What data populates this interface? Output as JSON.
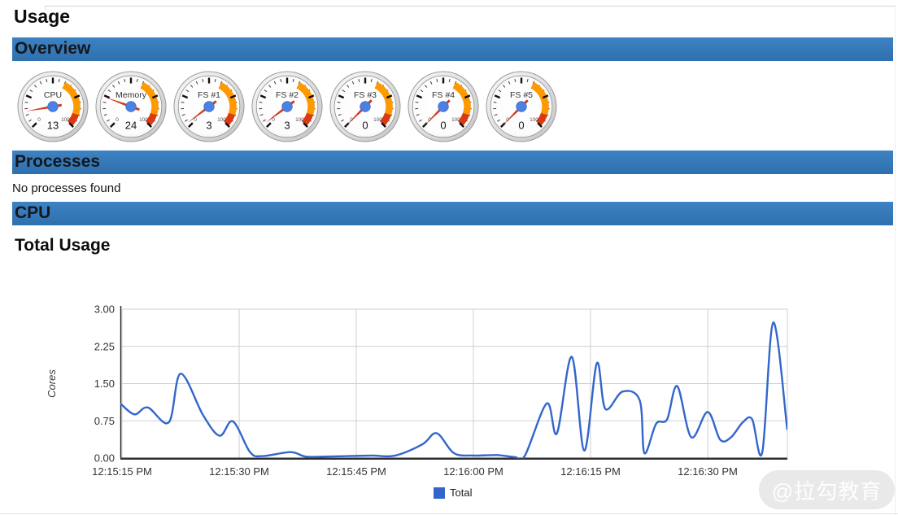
{
  "page": {
    "title": "Usage"
  },
  "sections": [
    {
      "id": "overview",
      "label": "Overview"
    },
    {
      "id": "processes",
      "label": "Processes"
    },
    {
      "id": "cpu",
      "label": "CPU"
    }
  ],
  "gauges": [
    {
      "label": "CPU",
      "value": 13,
      "min": 0,
      "max": 100
    },
    {
      "label": "Memory",
      "value": 24,
      "min": 0,
      "max": 100
    },
    {
      "label": "FS #1",
      "value": 3,
      "min": 0,
      "max": 100
    },
    {
      "label": "FS #2",
      "value": 3,
      "min": 0,
      "max": 100
    },
    {
      "label": "FS #3",
      "value": 0,
      "min": 0,
      "max": 100
    },
    {
      "label": "FS #4",
      "value": 0,
      "min": 0,
      "max": 100
    },
    {
      "label": "FS #5",
      "value": 0,
      "min": 0,
      "max": 100
    }
  ],
  "gauge_style": {
    "min_label": "0",
    "max_label": "100",
    "needle_color": "#d23b1e",
    "hub_color": "#4c80e1",
    "bands": [
      {
        "from": 60,
        "to": 90,
        "color": "#ff9900"
      },
      {
        "from": 90,
        "to": 100,
        "color": "#dc3912"
      }
    ]
  },
  "processes": {
    "empty_message": "No processes found"
  },
  "cpu_section": {
    "chart_title": "Total Usage"
  },
  "chart_data": {
    "type": "line",
    "title": "Total Usage",
    "xlabel": "",
    "ylabel": "Cores",
    "ylim": [
      0,
      3
    ],
    "grid": true,
    "legend_position": "bottom",
    "line_color": "#3366cc",
    "y_ticks": [
      {
        "v": 0.0,
        "label": "0.00"
      },
      {
        "v": 0.75,
        "label": "0.75"
      },
      {
        "v": 1.5,
        "label": "1.50"
      },
      {
        "v": 2.25,
        "label": "2.25"
      },
      {
        "v": 3.0,
        "label": "3.00"
      }
    ],
    "x_ticks": [
      {
        "t": 0,
        "label": "12:15:15 PM"
      },
      {
        "t": 15,
        "label": "12:15:30 PM"
      },
      {
        "t": 30,
        "label": "12:15:45 PM"
      },
      {
        "t": 45,
        "label": "12:16:00 PM"
      },
      {
        "t": 60,
        "label": "12:16:15 PM"
      },
      {
        "t": 75,
        "label": "12:16:30 PM"
      }
    ],
    "series": [
      {
        "name": "Total",
        "color": "#3366cc",
        "points": [
          [
            0,
            1.1
          ],
          [
            1.6,
            0.88
          ],
          [
            3.3,
            1.02
          ],
          [
            6,
            0.72
          ],
          [
            7.5,
            1.7
          ],
          [
            10.4,
            0.86
          ],
          [
            12.5,
            0.45
          ],
          [
            14.2,
            0.74
          ],
          [
            16.4,
            0.12
          ],
          [
            18,
            0.04
          ],
          [
            21.6,
            0.12
          ],
          [
            23.5,
            0.03
          ],
          [
            26,
            0.03
          ],
          [
            29,
            0.04
          ],
          [
            32,
            0.05
          ],
          [
            35,
            0.05
          ],
          [
            38.5,
            0.28
          ],
          [
            40.3,
            0.5
          ],
          [
            42.5,
            0.1
          ],
          [
            45,
            0.05
          ],
          [
            48,
            0.06
          ],
          [
            50.3,
            0.02
          ],
          [
            51.6,
            0.05
          ],
          [
            54.4,
            1.1
          ],
          [
            55.7,
            0.5
          ],
          [
            57.6,
            2.04
          ],
          [
            59.2,
            0.15
          ],
          [
            60.8,
            1.91
          ],
          [
            61.9,
            0.99
          ],
          [
            64.1,
            1.34
          ],
          [
            66.3,
            1.16
          ],
          [
            66.9,
            0.1
          ],
          [
            68.4,
            0.69
          ],
          [
            69.8,
            0.78
          ],
          [
            71.1,
            1.45
          ],
          [
            72.9,
            0.42
          ],
          [
            75,
            0.93
          ],
          [
            76.6,
            0.37
          ],
          [
            78,
            0.42
          ],
          [
            79.5,
            0.72
          ],
          [
            80.7,
            0.78
          ],
          [
            82,
            0.12
          ],
          [
            83.4,
            2.73
          ],
          [
            85.2,
            0.57
          ]
        ]
      }
    ]
  },
  "watermark": {
    "text": "@拉勾教育"
  }
}
